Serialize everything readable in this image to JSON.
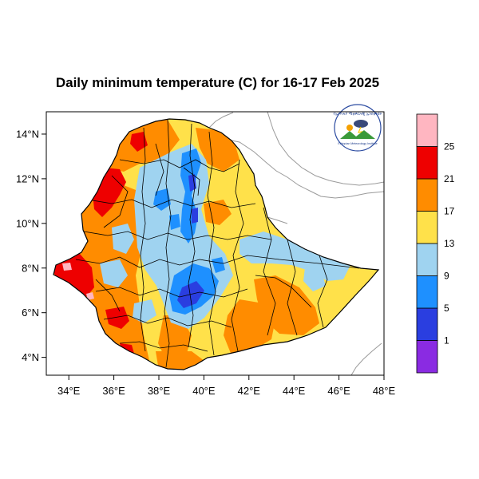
{
  "title": "Daily minimum temperature (C) for 16-17 Feb 2025",
  "logo": {
    "text_top": "የኢትዮጵያ ሚቲዎሮሎጂ ኢንስቲትዩት",
    "text_bottom": "Ethiopian Meteorology Institute"
  },
  "map_data": {
    "lon_range": [
      33,
      48
    ],
    "lat_range": [
      3.2,
      15
    ],
    "x_ticks": [
      {
        "value": 34,
        "label": "34°E"
      },
      {
        "value": 36,
        "label": "36°E"
      },
      {
        "value": 38,
        "label": "38°E"
      },
      {
        "value": 40,
        "label": "40°E"
      },
      {
        "value": 42,
        "label": "42°E"
      },
      {
        "value": 44,
        "label": "44°E"
      },
      {
        "value": 46,
        "label": "46°E"
      },
      {
        "value": 48,
        "label": "48°E"
      }
    ],
    "y_ticks": [
      {
        "value": 4,
        "label": "4°N"
      },
      {
        "value": 6,
        "label": "6°N"
      },
      {
        "value": 8,
        "label": "8°N"
      },
      {
        "value": 10,
        "label": "10°N"
      },
      {
        "value": 12,
        "label": "12°N"
      },
      {
        "value": 14,
        "label": "14°N"
      }
    ]
  },
  "legend": {
    "bins": [
      {
        "color": "#8a2be2"
      },
      {
        "color": "#2a3ee0"
      },
      {
        "color": "#1e90ff"
      },
      {
        "color": "#9fd3f0"
      },
      {
        "color": "#ffe14a"
      },
      {
        "color": "#ff8c00"
      },
      {
        "color": "#ee0000"
      },
      {
        "color": "#ffb6c1"
      }
    ],
    "labels": [
      "1",
      "5",
      "9",
      "13",
      "17",
      "21",
      "25"
    ]
  }
}
